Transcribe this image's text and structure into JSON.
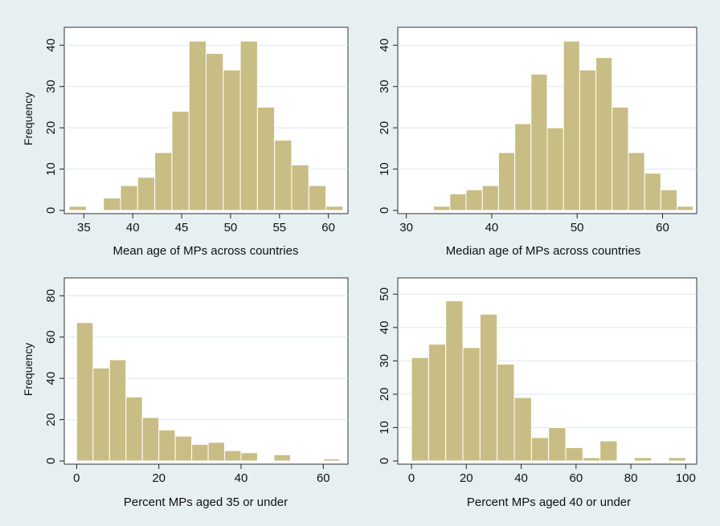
{
  "chart_data": [
    {
      "type": "bar",
      "ylabel": "Frequency",
      "xlabel": "Mean age of MPs across countries",
      "xlim": [
        33,
        62
      ],
      "ylim": [
        0,
        42
      ],
      "xticks": [
        "35",
        "40",
        "45",
        "50",
        "55",
        "60"
      ],
      "yticks": [
        "0",
        "10",
        "20",
        "30",
        "40"
      ],
      "bin_width": 1.75,
      "bin_starts": [
        33.5,
        35.25,
        37.0,
        38.75,
        40.5,
        42.25,
        44.0,
        45.75,
        47.5,
        49.25,
        51.0,
        52.75,
        54.5,
        56.25,
        58.0,
        59.75
      ],
      "values": [
        1,
        0,
        3,
        6,
        8,
        14,
        24,
        41,
        38,
        34,
        41,
        25,
        17,
        11,
        6,
        1
      ],
      "bar_color": "#c8bd84"
    },
    {
      "type": "bar",
      "ylabel": "",
      "xlabel": "Median age of MPs across countries",
      "xlim": [
        29,
        64
      ],
      "ylim": [
        0,
        42
      ],
      "xticks": [
        "30",
        "40",
        "50",
        "60"
      ],
      "yticks": [
        "0",
        "10",
        "20",
        "30",
        "40"
      ],
      "bin_width": 1.9,
      "bin_starts": [
        33.2,
        35.1,
        37.0,
        38.9,
        40.8,
        42.7,
        44.6,
        46.5,
        48.4,
        50.3,
        52.2,
        54.1,
        56.0,
        57.9,
        59.8,
        61.7
      ],
      "values": [
        1,
        4,
        5,
        6,
        14,
        21,
        33,
        20,
        41,
        34,
        37,
        25,
        14,
        9,
        5,
        1
      ],
      "bar_color": "#c8bd84"
    },
    {
      "type": "bar",
      "ylabel": "Frequency",
      "xlabel": "Percent MPs aged 35 or under",
      "xlim": [
        -3,
        66
      ],
      "ylim": [
        0,
        84
      ],
      "xticks": [
        "0",
        "20",
        "40",
        "60"
      ],
      "yticks": [
        "0",
        "20",
        "40",
        "60",
        "80"
      ],
      "bin_width": 4.0,
      "bin_starts": [
        0,
        4,
        8,
        12,
        16,
        20,
        24,
        28,
        32,
        36,
        40,
        44,
        48,
        52,
        56,
        60
      ],
      "values": [
        67,
        45,
        49,
        31,
        21,
        15,
        12,
        8,
        9,
        5,
        4,
        0,
        3,
        0,
        0,
        1
      ],
      "bar_color": "#c8bd84"
    },
    {
      "type": "bar",
      "ylabel": "",
      "xlabel": "Percent MPs aged 40 or under",
      "xlim": [
        -5,
        104
      ],
      "ylim": [
        0,
        52
      ],
      "xticks": [
        "0",
        "20",
        "40",
        "60",
        "80",
        "100"
      ],
      "yticks": [
        "0",
        "10",
        "20",
        "30",
        "40",
        "50"
      ],
      "bin_width": 6.25,
      "bin_starts": [
        0,
        6.25,
        12.5,
        18.75,
        25,
        31.25,
        37.5,
        43.75,
        50,
        56.25,
        62.5,
        68.75,
        75,
        81.25,
        87.5,
        93.75
      ],
      "values": [
        31,
        35,
        48,
        34,
        44,
        29,
        19,
        7,
        10,
        4,
        1,
        6,
        0,
        1,
        0,
        1
      ],
      "bar_color": "#c8bd84"
    }
  ]
}
